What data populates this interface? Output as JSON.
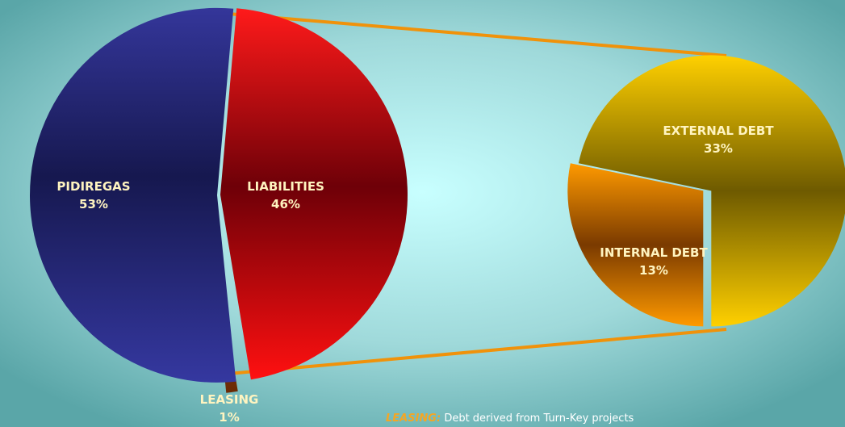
{
  "chart_data": [
    {
      "type": "pie",
      "title": "",
      "slices": [
        {
          "label": "PIDIREGAS",
          "value": 53,
          "value_label": "53%",
          "color": "#2b2e85"
        },
        {
          "label": "LIABILITIES",
          "value": 46,
          "value_label": "46%",
          "color": "#c8101a"
        },
        {
          "label": "LEASING",
          "value": 1,
          "value_label": "1%",
          "color": "#8a3a10"
        }
      ]
    },
    {
      "type": "pie",
      "title": "",
      "slices": [
        {
          "label": "EXTERNAL DEBT",
          "value": 33,
          "value_label": "33%",
          "color": "#d4a400"
        },
        {
          "label": "INTERNAL DEBT",
          "value": 13,
          "value_label": "13%",
          "color": "#e07800"
        }
      ]
    }
  ],
  "footnote": {
    "keyword": "LEASING:",
    "text": " Debt derived from Turn-Key projects"
  },
  "colors": {
    "label_text": "#fff4c0",
    "connector": "#f0920a",
    "background_center": "#c8ffff",
    "background_edge": "#5aa6a8"
  }
}
